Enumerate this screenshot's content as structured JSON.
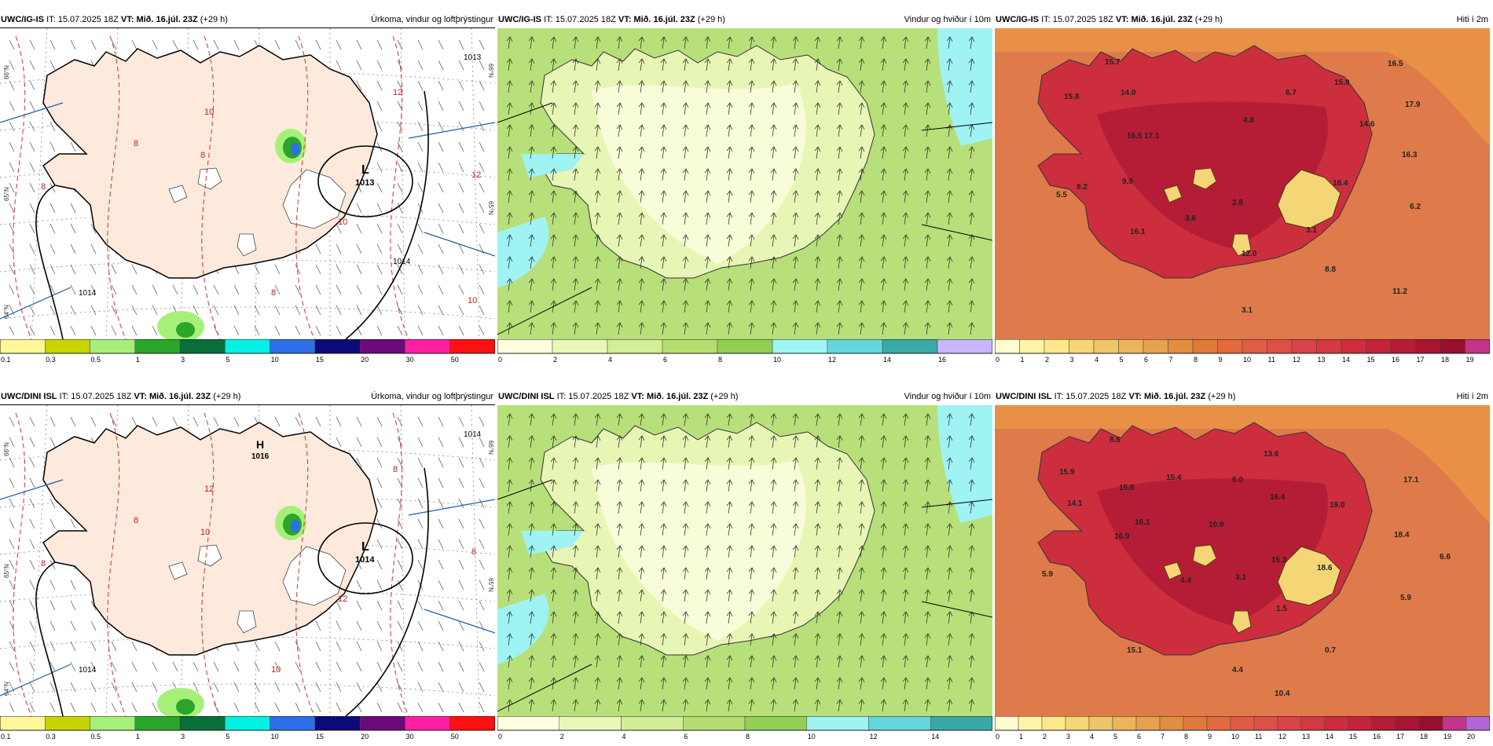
{
  "rows": [
    {
      "model": "UWC/IG-IS",
      "panels": [
        {
          "type": "precip",
          "title": "Úrkoma, vindur og loftþrýstingur",
          "colorbar": [
            "0.1",
            "0.3",
            "0.5",
            "1",
            "3",
            "5",
            "10",
            "15",
            "20",
            "30",
            "50"
          ],
          "colors": [
            "#fff799",
            "#c8d400",
            "#a6f07a",
            "#2aa62a",
            "#0a6e3a",
            "#00f2e4",
            "#2e6fe8",
            "#0a0a7a",
            "#6b0a7a",
            "#ff1fa0",
            "#ff1010"
          ],
          "contours": [
            "1013",
            "1014",
            "1014"
          ],
          "contour_labels": [
            "8",
            "8",
            "8",
            "8",
            "10",
            "10",
            "12",
            "12",
            "10"
          ],
          "low_center": {
            "symbol": "L",
            "value": "1013"
          },
          "lat_labels": [
            "66°N",
            "65°N",
            "64°N"
          ]
        },
        {
          "type": "wind",
          "title": "Vindur og hviður í 10m",
          "colorbar": [
            "0",
            "2",
            "4",
            "6",
            "8",
            "10",
            "12",
            "14",
            "16"
          ],
          "colors": [
            "#ffffe0",
            "#e9f7b8",
            "#d2ee97",
            "#b5de70",
            "#93cf55",
            "#9ff3f3",
            "#66d6dd",
            "#3aa9a6",
            "#c8b7ff"
          ]
        },
        {
          "type": "temp",
          "title": "Hiti í 2m",
          "colorbar": [
            "0",
            "1",
            "2",
            "3",
            "4",
            "5",
            "6",
            "7",
            "8",
            "9",
            "10",
            "11",
            "12",
            "13",
            "14",
            "15",
            "16",
            "17",
            "18",
            "19"
          ],
          "colors": [
            "#fffdd0",
            "#fff3a8",
            "#fde78c",
            "#f4d676",
            "#eec56a",
            "#ebb45d",
            "#e6a24f",
            "#e28e40",
            "#df7b3a",
            "#e26a3e",
            "#df5c45",
            "#dd5048",
            "#d9444b",
            "#d43a44",
            "#cc2e3e",
            "#c2253a",
            "#b51d36",
            "#a71532",
            "#97102f",
            "#c2358a"
          ],
          "values": [
            "15.7",
            "16.5",
            "15.8",
            "14.0",
            "6.7",
            "15.9",
            "17.9",
            "4.8",
            "14.6",
            "16.5",
            "17.1",
            "16.3",
            "9.2",
            "9.9",
            "16.4",
            "5.5",
            "2.8",
            "6.2",
            "3.6",
            "16.1",
            "3.1",
            "12.0",
            "8.8",
            "11.2",
            "3.1"
          ]
        }
      ],
      "header": {
        "it_label": "IT:",
        "it": "15.07.2025 18Z",
        "vt_label": "VT:",
        "vt": "Mið. 16.júl. 23Z",
        "lead": "(+29 h)"
      }
    },
    {
      "model": "UWC/DINI ISL",
      "panels": [
        {
          "type": "precip",
          "title": "Úrkoma, vindur og loftþrýstingur",
          "colorbar": [
            "0.1",
            "0.3",
            "0.5",
            "1",
            "3",
            "5",
            "10",
            "15",
            "20",
            "30",
            "50"
          ],
          "colors": [
            "#fff799",
            "#c8d400",
            "#a6f07a",
            "#2aa62a",
            "#0a6e3a",
            "#00f2e4",
            "#2e6fe8",
            "#0a0a7a",
            "#6b0a7a",
            "#ff1fa0",
            "#ff1010"
          ],
          "contours": [
            "1014",
            "1014"
          ],
          "contour_labels": [
            "8",
            "8",
            "10",
            "10",
            "12",
            "12",
            "8",
            "8"
          ],
          "low_center": {
            "symbol": "L",
            "value": "1014"
          },
          "high_center": {
            "symbol": "H",
            "value": "1016"
          },
          "lat_labels": [
            "66°N",
            "65°N",
            "64°N"
          ]
        },
        {
          "type": "wind",
          "title": "Vindur og hviður í 10m",
          "colorbar": [
            "0",
            "2",
            "4",
            "6",
            "8",
            "10",
            "12",
            "14"
          ],
          "colors": [
            "#ffffe0",
            "#e9f7b8",
            "#d2ee97",
            "#b5de70",
            "#93cf55",
            "#9ff3f3",
            "#66d6dd",
            "#3aa9a6"
          ]
        },
        {
          "type": "temp",
          "title": "Hiti í 2m",
          "colorbar": [
            "0",
            "1",
            "2",
            "3",
            "4",
            "5",
            "6",
            "7",
            "8",
            "9",
            "10",
            "11",
            "12",
            "13",
            "14",
            "15",
            "16",
            "17",
            "18",
            "19",
            "20"
          ],
          "colors": [
            "#fffdd0",
            "#fff3a8",
            "#fde78c",
            "#f4d676",
            "#eec56a",
            "#ebb45d",
            "#e6a24f",
            "#e28e40",
            "#df7b3a",
            "#e26a3e",
            "#df5c45",
            "#dd5048",
            "#d9444b",
            "#d43a44",
            "#cc2e3e",
            "#c2253a",
            "#b51d36",
            "#a71532",
            "#97102f",
            "#c2358a",
            "#b266d6"
          ],
          "values": [
            "8.6",
            "13.6",
            "15.9",
            "15.4",
            "6.0",
            "17.1",
            "15.6",
            "16.4",
            "14.1",
            "16.1",
            "10.9",
            "19.0",
            "18.4",
            "16.9",
            "15.3",
            "18.6",
            "6.6",
            "5.9",
            "4.4",
            "3.1",
            "5.9",
            "1.5",
            "15.1",
            "0.7",
            "4.4",
            "10.4"
          ]
        }
      ],
      "header": {
        "it_label": "IT:",
        "it": "15.07.2025 18Z",
        "vt_label": "VT:",
        "vt": "Mið. 16.júl. 23Z",
        "lead": "(+29 h)"
      }
    }
  ]
}
